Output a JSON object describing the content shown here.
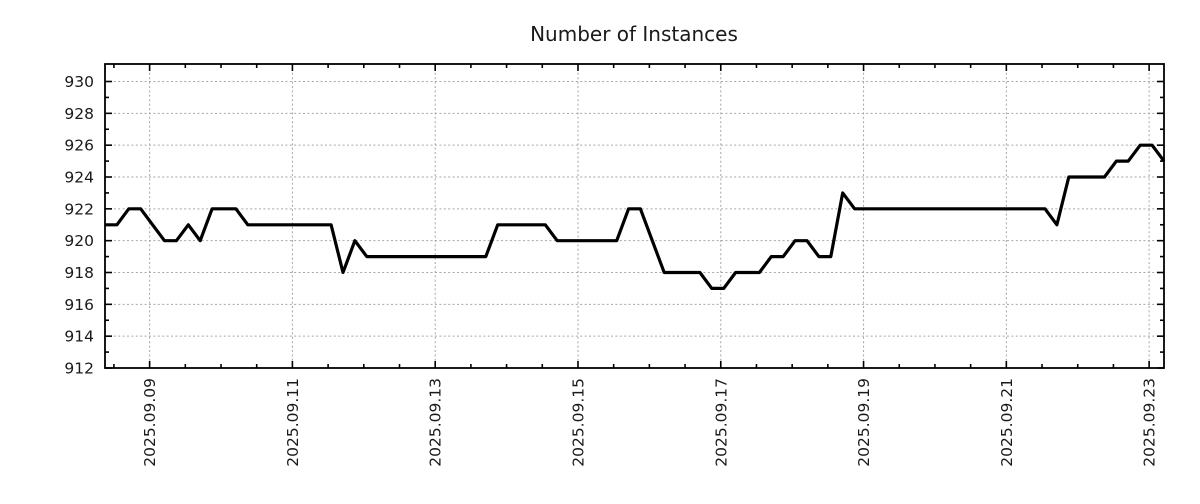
{
  "figure": {
    "title": "Number of Instances"
  },
  "chart_data": {
    "type": "line",
    "title": "Number of Instances",
    "grid": true,
    "legend": "none",
    "line_color": "#000000",
    "line_width": 3.2,
    "grid_color": "#a6a6a6",
    "axis_color": "#000000",
    "text_color": "#1a1a1a",
    "x_axis": {
      "kind": "time",
      "start": "2025.09.08 09:00",
      "step_hours": 4,
      "ticks": [
        {
          "label": "2025.09.09",
          "idx": 3.75
        },
        {
          "label": "2025.09.11",
          "idx": 15.75
        },
        {
          "label": "2025.09.13",
          "idx": 27.75
        },
        {
          "label": "2025.09.15",
          "idx": 39.75
        },
        {
          "label": "2025.09.17",
          "idx": 51.75
        },
        {
          "label": "2025.09.19",
          "idx": 63.75
        },
        {
          "label": "2025.09.21",
          "idx": 75.75
        },
        {
          "label": "2025.09.23",
          "idx": 87.75
        }
      ],
      "minor_tick_start_idx": 0.75,
      "minor_tick_step_idx": 3
    },
    "y_axis": {
      "ylim": [
        912,
        931.1
      ],
      "major_ticks": [
        912,
        914,
        916,
        918,
        920,
        922,
        924,
        926,
        928,
        930
      ],
      "minor_ticks": [
        913,
        915,
        917,
        919,
        921,
        923,
        925,
        927,
        929
      ]
    },
    "values": [
      921,
      921,
      922,
      922,
      921,
      920,
      920,
      921,
      920,
      922,
      922,
      922,
      921,
      921,
      921,
      921,
      921,
      921,
      921,
      921,
      918,
      920,
      919,
      919,
      919,
      919,
      919,
      919,
      919,
      919,
      919,
      919,
      919,
      921,
      921,
      921,
      921,
      921,
      920,
      920,
      920,
      920,
      920,
      920,
      922,
      922,
      920,
      918,
      918,
      918,
      918,
      917,
      917,
      918,
      918,
      918,
      919,
      919,
      920,
      920,
      919,
      919,
      923,
      922,
      922,
      922,
      922,
      922,
      922,
      922,
      922,
      922,
      922,
      922,
      922,
      922,
      922,
      922,
      922,
      922,
      921,
      924,
      924,
      924,
      924,
      925,
      925,
      926,
      926,
      925
    ]
  }
}
